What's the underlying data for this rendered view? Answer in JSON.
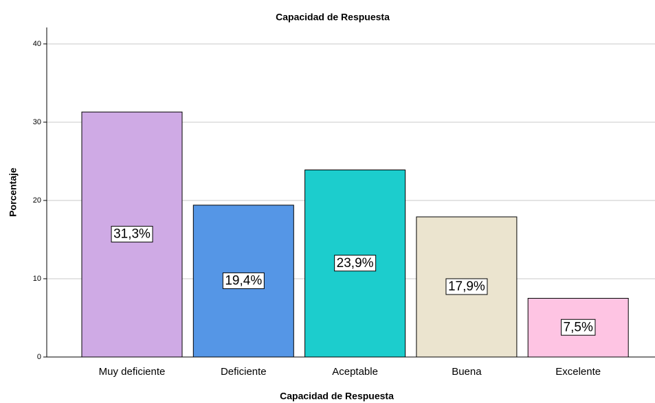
{
  "chart_data": {
    "type": "bar",
    "title": "Capacidad de Respuesta",
    "x_label": "Capacidad de Respuesta",
    "y_label": "Porcentaje",
    "categories": [
      "Muy deficiente",
      "Deficiente",
      "Aceptable",
      "Buena",
      "Excelente"
    ],
    "values": [
      31.3,
      19.4,
      23.9,
      17.9,
      7.5
    ],
    "value_labels": [
      "31,3%",
      "19,4%",
      "23,9%",
      "17,9%",
      "7,5%"
    ],
    "colors": [
      "#cfaae5",
      "#5596e6",
      "#1ccdcd",
      "#ebe4cf",
      "#fec4e3"
    ],
    "ylim": [
      0,
      42.1
    ],
    "yticks": [
      0,
      10,
      20,
      30,
      40
    ],
    "grid": true
  }
}
